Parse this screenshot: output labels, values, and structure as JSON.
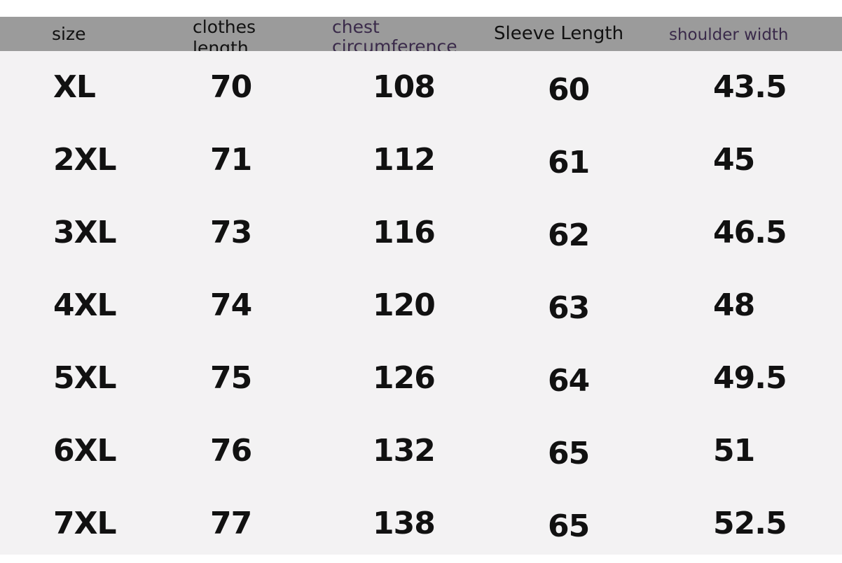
{
  "table": {
    "headers": [
      "size",
      "clothes length",
      "chest circumference",
      "Sleeve Length",
      "shoulder width"
    ],
    "header_lines": {
      "clothes": [
        "clothes",
        "length"
      ],
      "chest": [
        "chest",
        "circumference"
      ]
    },
    "rows": [
      [
        "XL",
        "70",
        "108",
        "60",
        "43.5"
      ],
      [
        "2XL",
        "71",
        "112",
        "61",
        "45"
      ],
      [
        "3XL",
        "73",
        "116",
        "62",
        "46.5"
      ],
      [
        "4XL",
        "74",
        "120",
        "63",
        "48"
      ],
      [
        "5XL",
        "75",
        "126",
        "64",
        "49.5"
      ],
      [
        "6XL",
        "76",
        "132",
        "65",
        "51"
      ],
      [
        "7XL",
        "77",
        "138",
        "65",
        "52.5"
      ]
    ],
    "colors": {
      "header_bg": "#9b9b9b",
      "body_bg": "#f3f2f3",
      "text": "#111111"
    }
  }
}
